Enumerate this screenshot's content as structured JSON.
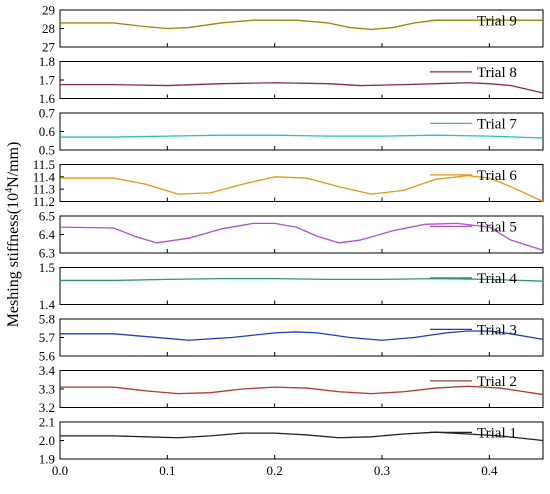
{
  "chart_data": {
    "type": "line",
    "ylabel_main": "Meshing stiffness(10",
    "ylabel_sup": "4",
    "ylabel_unit": "N/mm)",
    "xlim": [
      0.0,
      0.45
    ],
    "xticks": [
      0.0,
      0.1,
      0.2,
      0.3,
      0.4
    ],
    "xtick_labels": [
      "0.0",
      "0.1",
      "0.2",
      "0.3",
      "0.4"
    ],
    "panels": [
      {
        "legend": "Trial 9",
        "color": "#9a8a00",
        "ylim": [
          27,
          29
        ],
        "yticks": [
          27,
          28,
          29
        ],
        "ytick_labels": [
          "27",
          "28",
          "29"
        ],
        "x": [
          0.0,
          0.05,
          0.08,
          0.1,
          0.12,
          0.15,
          0.18,
          0.2,
          0.22,
          0.25,
          0.27,
          0.29,
          0.31,
          0.33,
          0.35,
          0.37,
          0.4,
          0.43,
          0.45
        ],
        "y": [
          28.3,
          28.3,
          28.1,
          28.0,
          28.05,
          28.3,
          28.45,
          28.45,
          28.45,
          28.3,
          28.05,
          27.95,
          28.05,
          28.3,
          28.45,
          28.45,
          28.45,
          28.45,
          28.45
        ]
      },
      {
        "legend": "Trial 8",
        "color": "#8b2a45",
        "ylim": [
          1.6,
          1.8
        ],
        "yticks": [
          1.6,
          1.7,
          1.8
        ],
        "ytick_labels": [
          "1.6",
          "1.7",
          "1.8"
        ],
        "x": [
          0.0,
          0.05,
          0.1,
          0.15,
          0.2,
          0.25,
          0.28,
          0.32,
          0.35,
          0.38,
          0.4,
          0.42,
          0.45
        ],
        "y": [
          1.675,
          1.675,
          1.67,
          1.68,
          1.685,
          1.68,
          1.67,
          1.675,
          1.68,
          1.685,
          1.68,
          1.67,
          1.63
        ]
      },
      {
        "legend": "Trial 7",
        "color": "#1fc5c0",
        "ylim": [
          0.5,
          0.7
        ],
        "yticks": [
          0.5,
          0.6,
          0.7
        ],
        "ytick_labels": [
          "0.5",
          "0.6",
          "0.7"
        ],
        "x": [
          0.0,
          0.05,
          0.1,
          0.15,
          0.2,
          0.25,
          0.3,
          0.35,
          0.4,
          0.45
        ],
        "y": [
          0.57,
          0.57,
          0.575,
          0.58,
          0.58,
          0.575,
          0.575,
          0.58,
          0.575,
          0.565
        ]
      },
      {
        "legend": "Trial 6",
        "color": "#e29a10",
        "ylim": [
          11.2,
          11.5
        ],
        "yticks": [
          11.2,
          11.3,
          11.4,
          11.5
        ],
        "ytick_labels": [
          "11.2",
          "11.3",
          "11.4",
          "11.5"
        ],
        "x": [
          0.0,
          0.05,
          0.08,
          0.11,
          0.14,
          0.17,
          0.2,
          0.23,
          0.26,
          0.29,
          0.32,
          0.35,
          0.38,
          0.4,
          0.42,
          0.45
        ],
        "y": [
          11.39,
          11.39,
          11.34,
          11.26,
          11.27,
          11.34,
          11.4,
          11.39,
          11.32,
          11.26,
          11.29,
          11.38,
          11.41,
          11.39,
          11.32,
          11.2
        ]
      },
      {
        "legend": "Trial 5",
        "color": "#b34fd1",
        "ylim": [
          6.3,
          6.5
        ],
        "yticks": [
          6.3,
          6.4,
          6.5
        ],
        "ytick_labels": [
          "6.3",
          "6.4",
          "6.5"
        ],
        "x": [
          0.0,
          0.05,
          0.07,
          0.09,
          0.12,
          0.15,
          0.18,
          0.2,
          0.22,
          0.24,
          0.26,
          0.28,
          0.31,
          0.34,
          0.37,
          0.4,
          0.42,
          0.45
        ],
        "y": [
          6.44,
          6.435,
          6.39,
          6.355,
          6.38,
          6.43,
          6.46,
          6.46,
          6.44,
          6.39,
          6.355,
          6.37,
          6.42,
          6.455,
          6.46,
          6.44,
          6.37,
          6.315
        ]
      },
      {
        "legend": "Trial 4",
        "color": "#2e9a60",
        "ylim": [
          1.4,
          1.5
        ],
        "yticks": [
          1.4,
          1.5
        ],
        "ytick_labels": [
          "1.4",
          "1.5"
        ],
        "x": [
          0.0,
          0.05,
          0.1,
          0.15,
          0.2,
          0.25,
          0.3,
          0.35,
          0.4,
          0.45
        ],
        "y": [
          1.465,
          1.465,
          1.468,
          1.47,
          1.47,
          1.468,
          1.468,
          1.47,
          1.468,
          1.463
        ]
      },
      {
        "legend": "Trial 3",
        "color": "#1a3fbf",
        "ylim": [
          5.6,
          5.8
        ],
        "yticks": [
          5.6,
          5.7,
          5.8
        ],
        "ytick_labels": [
          "5.6",
          "5.7",
          "5.8"
        ],
        "x": [
          0.0,
          0.05,
          0.08,
          0.12,
          0.16,
          0.2,
          0.22,
          0.24,
          0.27,
          0.3,
          0.33,
          0.36,
          0.38,
          0.4,
          0.42,
          0.45
        ],
        "y": [
          5.72,
          5.72,
          5.705,
          5.685,
          5.7,
          5.725,
          5.73,
          5.725,
          5.7,
          5.685,
          5.7,
          5.725,
          5.735,
          5.735,
          5.72,
          5.69
        ]
      },
      {
        "legend": "Trial 2",
        "color": "#b23a2a",
        "ylim": [
          3.2,
          3.4
        ],
        "yticks": [
          3.2,
          3.3,
          3.4
        ],
        "ytick_labels": [
          "3.2",
          "3.3",
          "3.4"
        ],
        "x": [
          0.0,
          0.05,
          0.08,
          0.11,
          0.14,
          0.17,
          0.2,
          0.23,
          0.26,
          0.29,
          0.32,
          0.35,
          0.38,
          0.41,
          0.45
        ],
        "y": [
          3.31,
          3.31,
          3.29,
          3.275,
          3.28,
          3.3,
          3.31,
          3.305,
          3.285,
          3.275,
          3.285,
          3.305,
          3.315,
          3.305,
          3.27
        ]
      },
      {
        "legend": "Trial 1",
        "color": "#222222",
        "ylim": [
          1.9,
          2.1
        ],
        "yticks": [
          1.9,
          2.0,
          2.1
        ],
        "ytick_labels": [
          "1.9",
          "2.0",
          "2.1"
        ],
        "x": [
          0.0,
          0.05,
          0.08,
          0.11,
          0.14,
          0.17,
          0.2,
          0.23,
          0.26,
          0.29,
          0.32,
          0.35,
          0.38,
          0.41,
          0.45
        ],
        "y": [
          2.025,
          2.025,
          2.02,
          2.015,
          2.025,
          2.04,
          2.04,
          2.03,
          2.015,
          2.02,
          2.035,
          2.045,
          2.035,
          2.025,
          2.0
        ]
      }
    ]
  }
}
